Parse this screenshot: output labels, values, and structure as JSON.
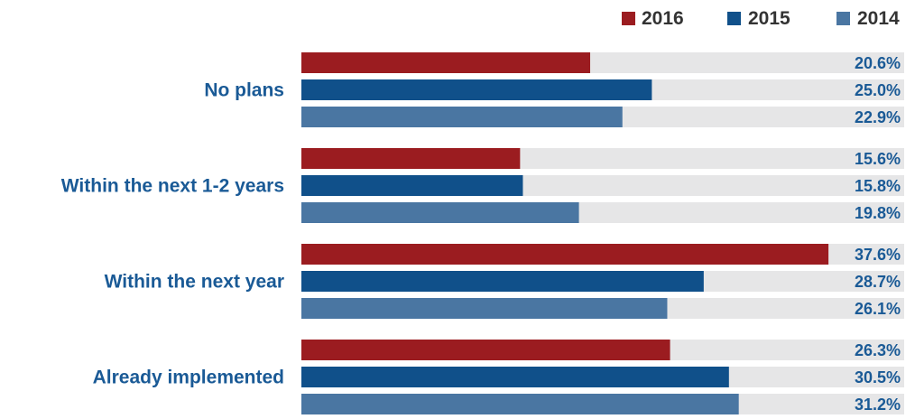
{
  "colors": {
    "2016": "#9b1c20",
    "2015": "#10508a",
    "2014": "#4a76a2",
    "track": "#e6e6e7",
    "category_text": "#1a5a96",
    "value_text": "#1a5a96",
    "legend_text": "#333333"
  },
  "legend": [
    {
      "label": "2016",
      "color_key": "2016"
    },
    {
      "label": "2015",
      "color_key": "2015"
    },
    {
      "label": "2014",
      "color_key": "2014"
    }
  ],
  "chart_data": {
    "type": "bar",
    "orientation": "horizontal",
    "categories": [
      "No plans",
      "Within the next 1-2 years",
      "Within the next year",
      "Already implemented"
    ],
    "series": [
      {
        "name": "2016",
        "values": [
          20.6,
          15.6,
          37.6,
          26.3
        ]
      },
      {
        "name": "2015",
        "values": [
          25.0,
          15.8,
          28.7,
          30.5
        ]
      },
      {
        "name": "2014",
        "values": [
          22.9,
          19.8,
          26.1,
          31.2
        ]
      }
    ],
    "value_labels": [
      [
        "20.6%",
        "25.0%",
        "22.9%"
      ],
      [
        "15.6%",
        "15.8%",
        "19.8%"
      ],
      [
        "37.6%",
        "28.7%",
        "26.1%"
      ],
      [
        "26.3%",
        "30.5%",
        "31.2%"
      ]
    ],
    "xlim": [
      0,
      43
    ],
    "legend_position": "top-right",
    "grid": false
  }
}
